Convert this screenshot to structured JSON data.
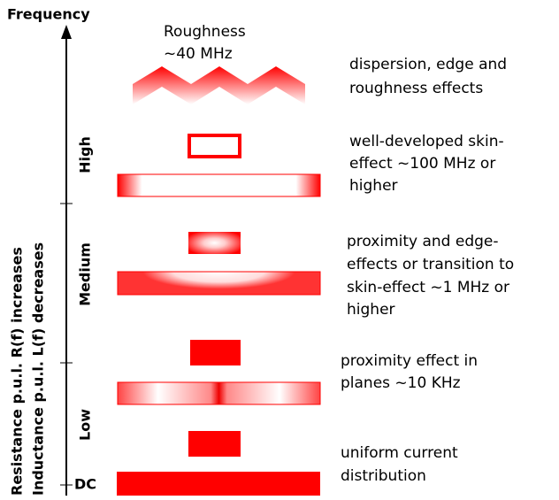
{
  "axis": {
    "title": "Frequency",
    "labels": [
      "Resistance p.u.l. R(f) increases",
      "Inductance p.u.l. L(f) decreases"
    ]
  },
  "bands": [
    "High",
    "Medium",
    "Low",
    "DC"
  ],
  "roughness": [
    "Roughness",
    "~40 MHz"
  ],
  "descriptions": [
    [
      "dispersion, edge and",
      "roughness effects"
    ],
    [
      "well-developed skin-",
      "effect ~100 MHz or",
      "higher"
    ],
    [
      "proximity and edge-",
      "effects or transition to",
      "skin-effect ~1 MHz or",
      "higher"
    ],
    [
      "proximity effect in",
      "planes ~10 KHz"
    ],
    [
      "uniform current",
      "distribution"
    ]
  ]
}
